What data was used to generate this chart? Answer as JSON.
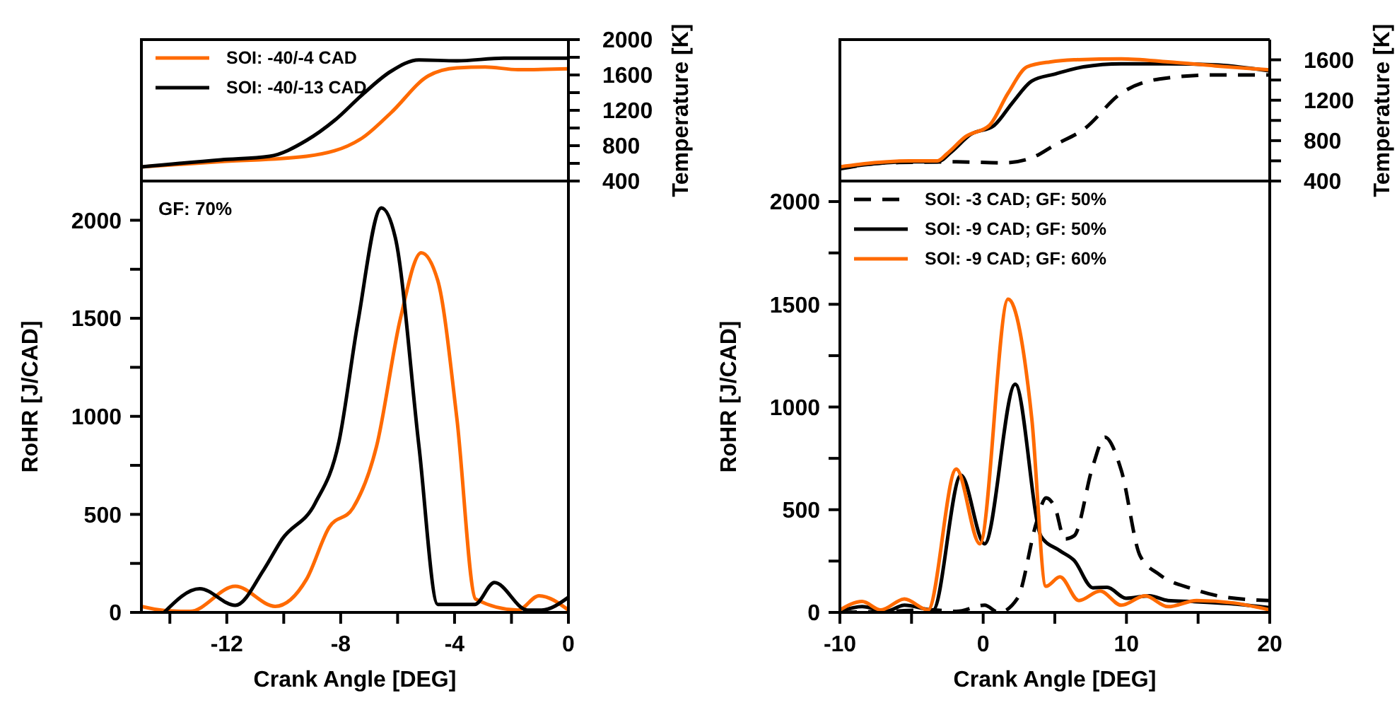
{
  "chart_data": [
    {
      "type": "line",
      "xlim": [
        -15,
        0
      ],
      "y2lim": [
        400,
        2000
      ],
      "y2ticks": [
        400,
        {
          "value": 600,
          "label": null
        },
        800,
        {
          "value": 1000,
          "label": null
        },
        1200,
        {
          "value": 1400,
          "label": null
        },
        1600,
        {
          "value": 1800,
          "label": null
        },
        2000
      ],
      "y2label": "Temperature [K]",
      "tick_labels": "y",
      "legend": "top left",
      "series": [
        {
          "name": "SOI: -40/-4 CAD",
          "color": "#ff6a00",
          "axis": "y2",
          "x": [
            -15,
            -12.2,
            -9.2,
            -7.23,
            -6.24,
            -4.92,
            -3.92,
            -2.93,
            -1.77,
            0
          ],
          "values": [
            560,
            620,
            680,
            890,
            1170,
            1590,
            1680,
            1690,
            1660,
            1670
          ]
        },
        {
          "name": "SOI: -40/-13 CAD",
          "color": "#000000",
          "axis": "y2",
          "x": [
            -15,
            -12.2,
            -10.5,
            -9.2,
            -8.2,
            -7.23,
            -6.24,
            -5.25,
            -3.92,
            -2.27,
            0
          ],
          "values": [
            560,
            640,
            680,
            860,
            1090,
            1380,
            1640,
            1770,
            1760,
            1790,
            1790
          ]
        }
      ]
    },
    {
      "type": "line",
      "xlim": [
        -15,
        0
      ],
      "xticks": [
        {
          "value": -14,
          "label": null
        },
        -12,
        {
          "value": -10,
          "label": null
        },
        -8,
        {
          "value": -6,
          "label": null
        },
        -4,
        {
          "value": -2,
          "label": null
        },
        0
      ],
      "ylim": [
        0,
        2200
      ],
      "yticks": [
        0,
        {
          "value": 250,
          "label": null
        },
        500,
        {
          "value": 750,
          "label": null
        },
        1000,
        {
          "value": 1250,
          "label": null
        },
        1500,
        {
          "value": 1750,
          "label": null
        },
        2000
      ],
      "xlabel": "Crank Angle [DEG]",
      "ylabel": "RoHR [J/CAD]",
      "annotations": [
        "GF: 70%"
      ],
      "series": [
        {
          "color": "#ff6a00",
          "x": [
            -15,
            -14.2,
            -13.3,
            -11.7,
            -10.3,
            -9.2,
            -8.4,
            -7.57,
            -6.74,
            -5.9,
            -5.17,
            -4.59,
            -3.92,
            -3.26,
            -1.77,
            -1.03,
            0
          ],
          "values": [
            31,
            10,
            5,
            133,
            31,
            169,
            435,
            532,
            847,
            1500,
            1834,
            1693,
            992,
            68,
            12,
            85,
            12
          ]
        },
        {
          "color": "#000000",
          "x": [
            -14.2,
            -12.95,
            -11.7,
            -10.7,
            -10.05,
            -8.9,
            -8.06,
            -7.4,
            -6.57,
            -6.08,
            -5.25,
            -4.59,
            -3.29,
            -2.6,
            -1.44,
            -0.94,
            0
          ],
          "values": [
            0,
            121,
            36,
            218,
            375,
            556,
            871,
            1476,
            2063,
            1911,
            847,
            41,
            41,
            152,
            12,
            12,
            77
          ]
        }
      ]
    },
    {
      "type": "line",
      "xlim": [
        -10,
        20
      ],
      "y2lim": [
        400,
        1800
      ],
      "y2ticks": [
        400,
        {
          "value": 600,
          "label": null
        },
        800,
        {
          "value": 1000,
          "label": null
        },
        1200,
        {
          "value": 1400,
          "label": null
        },
        1600
      ],
      "y2label": "Temperature [K]",
      "tick_labels": "y",
      "series": [
        {
          "color": "#000000",
          "axis": "y2",
          "line_style": "dashed",
          "x": [
            -10,
            -6.8,
            -1.88,
            1.41,
            3.39,
            5.03,
            7.0,
            9.64,
            12.3,
            16.2,
            20
          ],
          "values": [
            520,
            580,
            590,
            580,
            630,
            760,
            910,
            1270,
            1410,
            1450,
            1450
          ]
        },
        {
          "color": "#000000",
          "axis": "y2",
          "x": [
            -10,
            -5.16,
            -3.19,
            -2.2,
            -0.89,
            0.76,
            2.07,
            3.39,
            5.03,
            7.0,
            9.64,
            12.9,
            16.2,
            20
          ],
          "values": [
            530,
            590,
            590,
            690,
            860,
            950,
            1180,
            1390,
            1460,
            1530,
            1560,
            1560,
            1550,
            1490
          ]
        },
        {
          "color": "#ff6a00",
          "axis": "y2",
          "x": [
            -10,
            -5.16,
            -3.19,
            -2.53,
            -1.22,
            0.43,
            1.74,
            3.06,
            4.7,
            6.35,
            9.64,
            12.9,
            16.2,
            20
          ],
          "values": [
            540,
            600,
            600,
            670,
            840,
            950,
            1270,
            1530,
            1580,
            1600,
            1610,
            1580,
            1540,
            1500
          ]
        }
      ]
    },
    {
      "type": "line",
      "xlim": [
        -10,
        20
      ],
      "xticks": [
        -10,
        {
          "value": -5,
          "label": null
        },
        0,
        {
          "value": 5,
          "label": null
        },
        10,
        {
          "value": 15,
          "label": null
        },
        20
      ],
      "ylim": [
        0,
        2100
      ],
      "yticks": [
        0,
        {
          "value": 250,
          "label": null
        },
        500,
        {
          "value": 750,
          "label": null
        },
        1000,
        {
          "value": 1250,
          "label": null
        },
        1500,
        {
          "value": 1750,
          "label": null
        },
        2000
      ],
      "xlabel": "Crank Angle [DEG]",
      "ylabel": "RoHR [J/CAD]",
      "legend": "top left",
      "series": [
        {
          "name": "SOI: -3 CAD; GF: 50%",
          "color": "#000000",
          "line_style": "dashed",
          "x": [
            -10,
            -6.8,
            -3.5,
            -1.88,
            0.1,
            1.09,
            2.4,
            3.72,
            4.38,
            5.03,
            5.69,
            6.35,
            7.66,
            8.49,
            9.64,
            10.95,
            12.3,
            14.6,
            16.9,
            20
          ],
          "values": [
            0,
            5,
            12,
            5,
            35,
            0,
            69,
            438,
            558,
            507,
            357,
            373,
            714,
            853,
            691,
            276,
            184,
            115,
            74,
            58
          ]
        },
        {
          "name": "SOI: -9 CAD; GF: 50%",
          "color": "#000000",
          "x": [
            -10,
            -8.45,
            -6.8,
            -5.5,
            -3.5,
            -1.55,
            0.1,
            2.24,
            4.05,
            5.36,
            6.35,
            7.66,
            8.65,
            9.97,
            11.6,
            12.9,
            14.6,
            17.9,
            20
          ],
          "values": [
            5,
            28,
            5,
            35,
            12,
            668,
            334,
            1111,
            369,
            300,
            253,
            120,
            122,
            69,
            81,
            58,
            53,
            39,
            23
          ]
        },
        {
          "name": "SOI: -9 CAD; GF: 60%",
          "color": "#ff6a00",
          "x": [
            -10,
            -8.45,
            -7.14,
            -5.5,
            -3.85,
            -1.88,
            -0.23,
            1.74,
            3.39,
            4.38,
            5.36,
            6.68,
            8.16,
            9.64,
            11.3,
            12.9,
            14.9,
            17.5,
            20
          ],
          "values": [
            12,
            53,
            12,
            65,
            12,
            698,
            334,
            1525,
            945,
            127,
            173,
            58,
            104,
            35,
            81,
            28,
            58,
            46,
            12
          ]
        }
      ]
    }
  ]
}
